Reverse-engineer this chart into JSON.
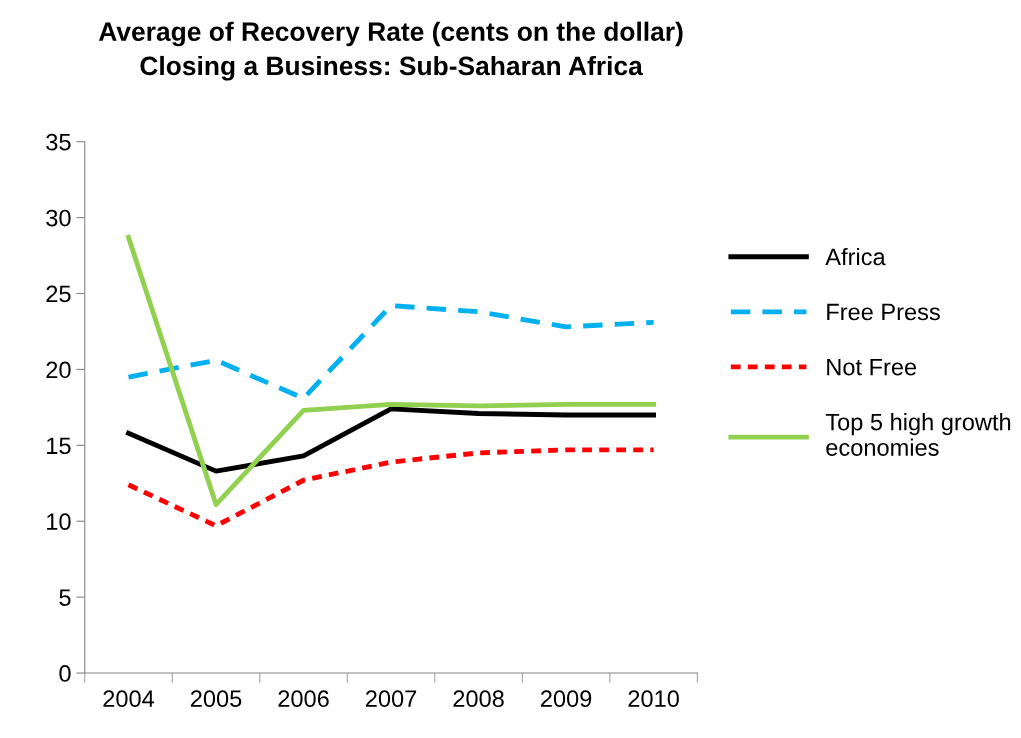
{
  "chart_data": {
    "type": "line",
    "title": "Average of Recovery Rate (cents on the dollar)\nClosing a Business: Sub-Saharan Africa",
    "categories": [
      "2004",
      "2005",
      "2006",
      "2007",
      "2008",
      "2009",
      "2010"
    ],
    "series": [
      {
        "name": "Africa",
        "color": "#000000",
        "line_style": "solid",
        "values": [
          15.8,
          13.3,
          14.3,
          17.4,
          17.1,
          17.0,
          17.0
        ]
      },
      {
        "name": "Free Press",
        "color": "#00b0f0",
        "line_style": "dashed",
        "values": [
          19.5,
          20.6,
          18.1,
          24.2,
          23.8,
          22.8,
          23.1
        ]
      },
      {
        "name": "Not Free",
        "color": "#ff0000",
        "line_style": "dotted",
        "values": [
          12.4,
          9.7,
          12.7,
          13.9,
          14.5,
          14.7,
          14.7
        ]
      },
      {
        "name": "Top 5 high growth\neconomies",
        "color": "#92d050",
        "line_style": "solid",
        "values": [
          28.7,
          11.1,
          17.3,
          17.7,
          17.6,
          17.7,
          17.7
        ]
      }
    ],
    "ylim": [
      0,
      35
    ],
    "yticks": [
      0,
      5,
      10,
      15,
      20,
      25,
      30,
      35
    ],
    "grid": false,
    "legend": "right",
    "marker": "none"
  }
}
